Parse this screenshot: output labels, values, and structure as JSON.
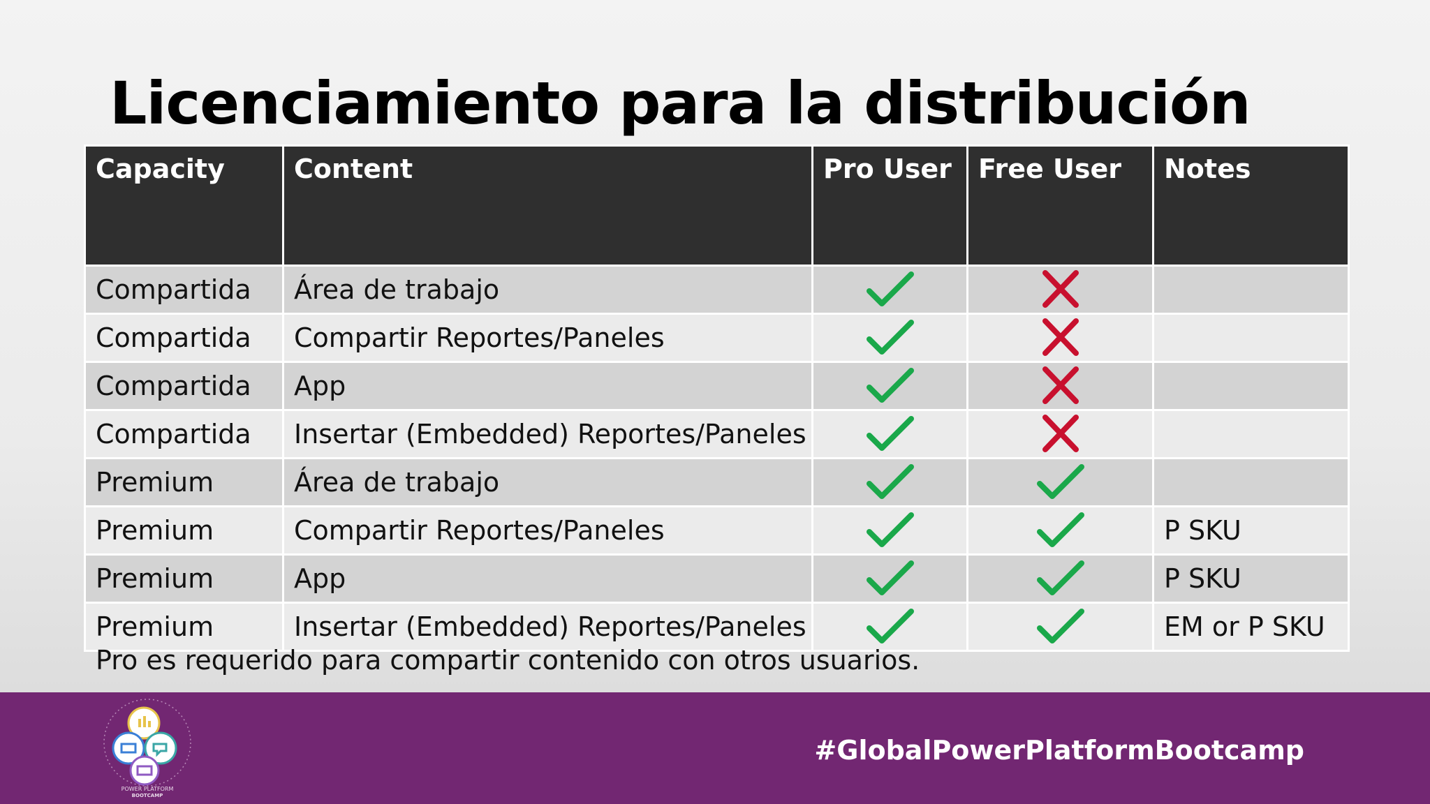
{
  "slide": {
    "title": "Licenciamiento para la distribución",
    "footnote": "Pro es requerido para compartir contenido con otros usuarios.",
    "hashtag": "#GlobalPowerPlatformBootcamp",
    "logo_text": [
      "POWER PLATFORM",
      "BOOTCAMP"
    ]
  },
  "table": {
    "headers": [
      "Capacity",
      "Content",
      "Pro User",
      "Free User",
      "Notes"
    ],
    "rows": [
      {
        "capacity": "Compartida",
        "content": "Área de trabajo",
        "pro": "check",
        "free": "cross",
        "notes": ""
      },
      {
        "capacity": "Compartida",
        "content": "Compartir Reportes/Paneles",
        "pro": "check",
        "free": "cross",
        "notes": ""
      },
      {
        "capacity": "Compartida",
        "content": "App",
        "pro": "check",
        "free": "cross",
        "notes": ""
      },
      {
        "capacity": "Compartida",
        "content": "Insertar (Embedded) Reportes/Paneles",
        "pro": "check",
        "free": "cross",
        "notes": ""
      },
      {
        "capacity": "Premium",
        "content": "Área de trabajo",
        "pro": "check",
        "free": "check",
        "notes": ""
      },
      {
        "capacity": "Premium",
        "content": "Compartir Reportes/Paneles",
        "pro": "check",
        "free": "check",
        "notes": "P SKU"
      },
      {
        "capacity": "Premium",
        "content": "App",
        "pro": "check",
        "free": "check",
        "notes": "P SKU"
      },
      {
        "capacity": "Premium",
        "content": "Insertar (Embedded) Reportes/Paneles",
        "pro": "check",
        "free": "check",
        "notes": "EM or P SKU"
      }
    ]
  },
  "colors": {
    "header_bg": "#2f2f2f",
    "row_odd": "#d3d3d3",
    "row_even": "#ebebeb",
    "check": "#1aa84a",
    "cross": "#c8102e",
    "footer": "#722772"
  },
  "icons": {
    "check": "check-icon",
    "cross": "cross-icon"
  }
}
